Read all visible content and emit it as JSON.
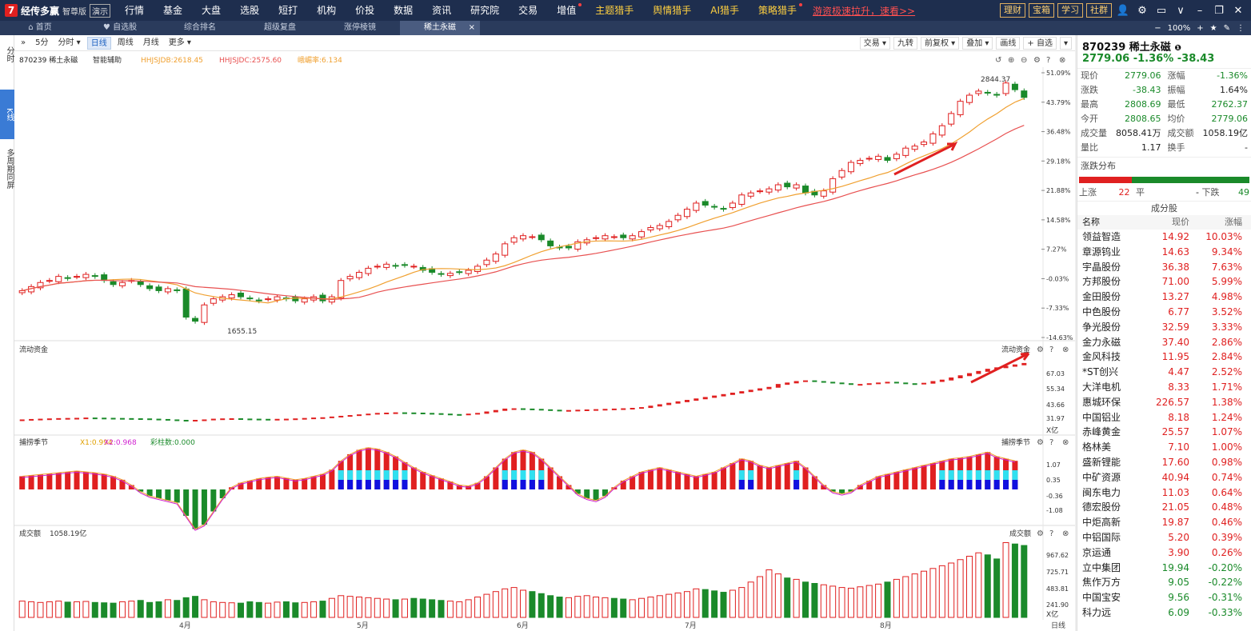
{
  "topbar": {
    "logo_mark": "7",
    "logo_name": "经传多赢",
    "logo_edition": "智尊版",
    "logo_demo": "演示",
    "menu": [
      {
        "label": "行情",
        "dot": false
      },
      {
        "label": "基金",
        "dot": false
      },
      {
        "label": "大盘",
        "dot": false
      },
      {
        "label": "选股",
        "dot": false
      },
      {
        "label": "短打",
        "dot": false
      },
      {
        "label": "机构",
        "dot": false
      },
      {
        "label": "价投",
        "dot": false
      },
      {
        "label": "数据",
        "dot": false
      },
      {
        "label": "资讯",
        "dot": false
      },
      {
        "label": "研究院",
        "dot": false
      },
      {
        "label": "交易",
        "dot": false
      },
      {
        "label": "增值",
        "dot": true
      },
      {
        "label": "主题猎手",
        "dot": false
      },
      {
        "label": "舆情猎手",
        "dot": false
      },
      {
        "label": "AI猎手",
        "dot": false
      },
      {
        "label": "策略猎手",
        "dot": true
      }
    ],
    "promo": "游资极速拉升，速看>>",
    "right_buttons": [
      "理财",
      "宝箱",
      "学习",
      "社群"
    ]
  },
  "tabs": [
    {
      "label": "首页",
      "icon": "home"
    },
    {
      "label": "自选股",
      "icon": "heart"
    },
    {
      "label": "综合排名"
    },
    {
      "label": "超级复盘"
    },
    {
      "label": "涨停棱镜"
    },
    {
      "label": "稀土永磁",
      "active": true,
      "close": "×"
    }
  ],
  "tab_right": {
    "zoom": "100%"
  },
  "leftnav": [
    "分时",
    "K线",
    "多周期同屏"
  ],
  "toolbar": {
    "left": [
      "5分",
      "分时 ▾",
      "日线",
      "周线",
      "月线",
      "更多 ▾"
    ],
    "active": "日线",
    "right": [
      "交易 ▾",
      "九转",
      "前复权 ▾",
      "叠加 ▾",
      "画线",
      "+ 自选",
      "▾"
    ]
  },
  "main_header": {
    "code_name": "870239 稀土永磁",
    "assist": "智能辅助",
    "ind1": "HHJSJDB:2618.45",
    "ind2": "HHJSJDC:2575.60",
    "ind3": "峨嵋率:6.134"
  },
  "y_axis_main": [
    "51.09%",
    "43.79%",
    "36.48%",
    "29.18%",
    "21.88%",
    "14.58%",
    "7.27%",
    "-0.03%",
    "-7.33%",
    "-14.63%"
  ],
  "annotations": {
    "high": "2844.37",
    "low": "1655.15"
  },
  "flow": {
    "title": "流动资金",
    "title_right": "流动资金",
    "y_axis": [
      "67.03",
      "55.34",
      "43.66",
      "31.97"
    ],
    "unit": "X亿"
  },
  "capture": {
    "title": "捕捞季节",
    "x1": "X1:0.994",
    "x2": "X2:0.968",
    "bars": "彩柱数:0.000",
    "title_right": "捕捞季节",
    "y_axis": [
      "1.07",
      "0.35",
      "-0.36",
      "-1.08"
    ]
  },
  "volume": {
    "title": "成交额",
    "value": "1058.19亿",
    "title_right": "成交额",
    "y_axis": [
      "967.62",
      "725.71",
      "483.81",
      "241.90"
    ],
    "unit": "X亿"
  },
  "x_axis": [
    "4月",
    "5月",
    "6月",
    "7月",
    "8月"
  ],
  "period_label": "日线",
  "right_panel": {
    "title": "870239 稀土永磁",
    "price_line": "2779.06 -1.36% -38.43",
    "quotes": [
      [
        "现价",
        "2779.06",
        "g",
        "涨幅",
        "-1.36%",
        "g"
      ],
      [
        "涨跌",
        "-38.43",
        "g",
        "振幅",
        "1.64%",
        ""
      ],
      [
        "最高",
        "2808.69",
        "g",
        "最低",
        "2762.37",
        "g"
      ],
      [
        "今开",
        "2808.65",
        "g",
        "均价",
        "2779.06",
        "g"
      ],
      [
        "成交量",
        "8058.41万",
        "",
        "成交额",
        "1058.19亿",
        ""
      ],
      [
        "量比",
        "1.17",
        "",
        "换手",
        "-",
        ""
      ]
    ],
    "dist_title": "涨跌分布",
    "dist": {
      "up_label": "上涨",
      "up": "22",
      "flat_label": "平",
      "flat": "-",
      "down_label": "下跌",
      "down": "49"
    },
    "cons_title": "成分股",
    "cons_head": [
      "名称",
      "现价",
      "涨幅"
    ],
    "cons": [
      [
        "领益智造",
        "14.92",
        "10.03%"
      ],
      [
        "章源钨业",
        "14.63",
        "9.34%"
      ],
      [
        "宇晶股份",
        "36.38",
        "7.63%"
      ],
      [
        "方邦股份",
        "71.00",
        "5.99%"
      ],
      [
        "金田股份",
        "13.27",
        "4.98%"
      ],
      [
        "中色股份",
        "6.77",
        "3.52%"
      ],
      [
        "争光股份",
        "32.59",
        "3.33%"
      ],
      [
        "金力永磁",
        "37.40",
        "2.86%"
      ],
      [
        "金风科技",
        "11.95",
        "2.84%"
      ],
      [
        "*ST创兴",
        "4.47",
        "2.52%"
      ],
      [
        "大洋电机",
        "8.33",
        "1.71%"
      ],
      [
        "惠城环保",
        "226.57",
        "1.38%"
      ],
      [
        "中国铝业",
        "8.18",
        "1.24%"
      ],
      [
        "赤峰黄金",
        "25.57",
        "1.07%"
      ],
      [
        "格林美",
        "7.10",
        "1.00%"
      ],
      [
        "盛新锂能",
        "17.60",
        "0.98%"
      ],
      [
        "中矿资源",
        "40.94",
        "0.74%"
      ],
      [
        "闽东电力",
        "11.03",
        "0.64%"
      ],
      [
        "德宏股份",
        "21.05",
        "0.48%"
      ],
      [
        "中炬高新",
        "19.87",
        "0.46%"
      ],
      [
        "中铝国际",
        "5.20",
        "0.39%"
      ],
      [
        "京运通",
        "3.90",
        "0.26%"
      ],
      [
        "立中集团",
        "19.94",
        "-0.20%"
      ],
      [
        "焦作万方",
        "9.05",
        "-0.22%"
      ],
      [
        "中国宝安",
        "9.56",
        "-0.31%"
      ],
      [
        "科力远",
        "6.09",
        "-0.33%"
      ]
    ]
  },
  "colors": {
    "up": "#e02020",
    "down": "#1a8a2a",
    "ma1": "#f0a030",
    "ma2": "#e85050"
  },
  "chart_data": {
    "type": "candlestick",
    "price_close": [
      1830,
      1850,
      1870,
      1880,
      1900,
      1890,
      1900,
      1910,
      1900,
      1880,
      1860,
      1870,
      1880,
      1860,
      1840,
      1830,
      1840,
      1830,
      1700,
      1680,
      1760,
      1790,
      1800,
      1810,
      1800,
      1790,
      1780,
      1790,
      1800,
      1790,
      1780,
      1790,
      1800,
      1780,
      1800,
      1880,
      1900,
      1920,
      1940,
      1950,
      1960,
      1950,
      1955,
      1950,
      1930,
      1920,
      1910,
      1915,
      1920,
      1930,
      1950,
      1980,
      2010,
      2060,
      2090,
      2100,
      2095,
      2080,
      2050,
      2040,
      2040,
      2070,
      2080,
      2090,
      2100,
      2095,
      2090,
      2100,
      2120,
      2140,
      2150,
      2170,
      2200,
      2230,
      2260,
      2250,
      2240,
      2230,
      2260,
      2300,
      2310,
      2320,
      2330,
      2350,
      2340,
      2350,
      2310,
      2300,
      2320,
      2380,
      2420,
      2460,
      2470,
      2480,
      2490,
      2470,
      2500,
      2530,
      2540,
      2560,
      2600,
      2640,
      2700,
      2760,
      2790,
      2810,
      2800,
      2790,
      2850,
      2817,
      2779
    ],
    "flow_values": [
      30.5,
      30.8,
      31,
      31.2,
      31.4,
      31.5,
      31.6,
      31.8,
      31.7,
      31.6,
      31.5,
      31.4,
      31.3,
      31.2,
      31,
      30.8,
      30.5,
      30.2,
      30,
      30.2,
      30.5,
      31,
      31.2,
      31.3,
      31.1,
      31,
      30.9,
      30.8,
      30.9,
      31,
      31.2,
      31.5,
      31.8,
      32,
      32.5,
      33,
      33.5,
      34,
      34.5,
      35,
      35.2,
      35.4,
      35.3,
      35.2,
      35,
      34.8,
      34.5,
      34.2,
      34,
      34.5,
      35,
      36,
      37,
      38,
      38.2,
      38,
      37.8,
      37.5,
      37.2,
      37,
      37,
      37.2,
      37.4,
      37.6,
      37.8,
      38,
      38.2,
      38.5,
      39,
      40,
      41,
      42,
      43,
      44,
      45,
      46,
      47,
      48,
      49,
      50,
      51,
      52,
      53,
      55,
      56,
      57,
      57.5,
      57,
      56.5,
      56,
      55.5,
      55,
      55,
      55.5,
      56,
      56.5,
      56,
      55.5,
      55.3,
      55.8,
      57,
      58,
      59.5,
      61,
      62.5,
      64,
      65.5,
      66.5,
      67.5,
      68.5,
      69.5
    ],
    "capture_values": [
      0.3,
      0.32,
      0.34,
      0.36,
      0.38,
      0.4,
      0.42,
      0.4,
      0.38,
      0.35,
      0.3,
      0.22,
      0.1,
      -0.05,
      -0.15,
      -0.2,
      -0.25,
      -0.3,
      -0.6,
      -0.9,
      -0.8,
      -0.5,
      -0.2,
      0.05,
      0.15,
      0.2,
      0.25,
      0.28,
      0.3,
      0.26,
      0.22,
      0.25,
      0.3,
      0.35,
      0.45,
      0.65,
      0.8,
      0.9,
      0.95,
      0.92,
      0.85,
      0.75,
      0.62,
      0.5,
      0.4,
      0.32,
      0.25,
      0.18,
      0.1,
      0.08,
      0.15,
      0.3,
      0.5,
      0.7,
      0.85,
      0.9,
      0.85,
      0.7,
      0.5,
      0.3,
      0.1,
      -0.1,
      -0.2,
      -0.25,
      -0.15,
      0.05,
      0.2,
      0.3,
      0.4,
      0.45,
      0.5,
      0.45,
      0.4,
      0.35,
      0.3,
      0.35,
      0.4,
      0.5,
      0.6,
      0.7,
      0.65,
      0.55,
      0.5,
      0.55,
      0.6,
      0.65,
      0.5,
      0.3,
      0.1,
      -0.05,
      -0.1,
      -0.05,
      0.1,
      0.2,
      0.3,
      0.35,
      0.4,
      0.45,
      0.5,
      0.55,
      0.6,
      0.65,
      0.7,
      0.72,
      0.75,
      0.8,
      0.85,
      0.75,
      0.7,
      0.65
    ],
    "volume_values": [
      240,
      230,
      220,
      230,
      240,
      225,
      230,
      235,
      220,
      215,
      210,
      230,
      240,
      250,
      220,
      230,
      260,
      250,
      290,
      310,
      260,
      230,
      220,
      215,
      210,
      230,
      220,
      210,
      225,
      230,
      215,
      220,
      230,
      240,
      280,
      320,
      310,
      300,
      290,
      280,
      270,
      260,
      270,
      280,
      270,
      260,
      250,
      240,
      230,
      260,
      300,
      340,
      380,
      420,
      440,
      400,
      380,
      350,
      320,
      300,
      290,
      310,
      320,
      300,
      290,
      280,
      270,
      260,
      280,
      300,
      320,
      340,
      360,
      380,
      420,
      410,
      390,
      370,
      400,
      440,
      520,
      600,
      700,
      640,
      580,
      560,
      520,
      500,
      480,
      460,
      440,
      430,
      450,
      470,
      490,
      520,
      560,
      600,
      640,
      680,
      720,
      760,
      800,
      850,
      900,
      950,
      920,
      860,
      1100,
      1080,
      1058
    ]
  }
}
